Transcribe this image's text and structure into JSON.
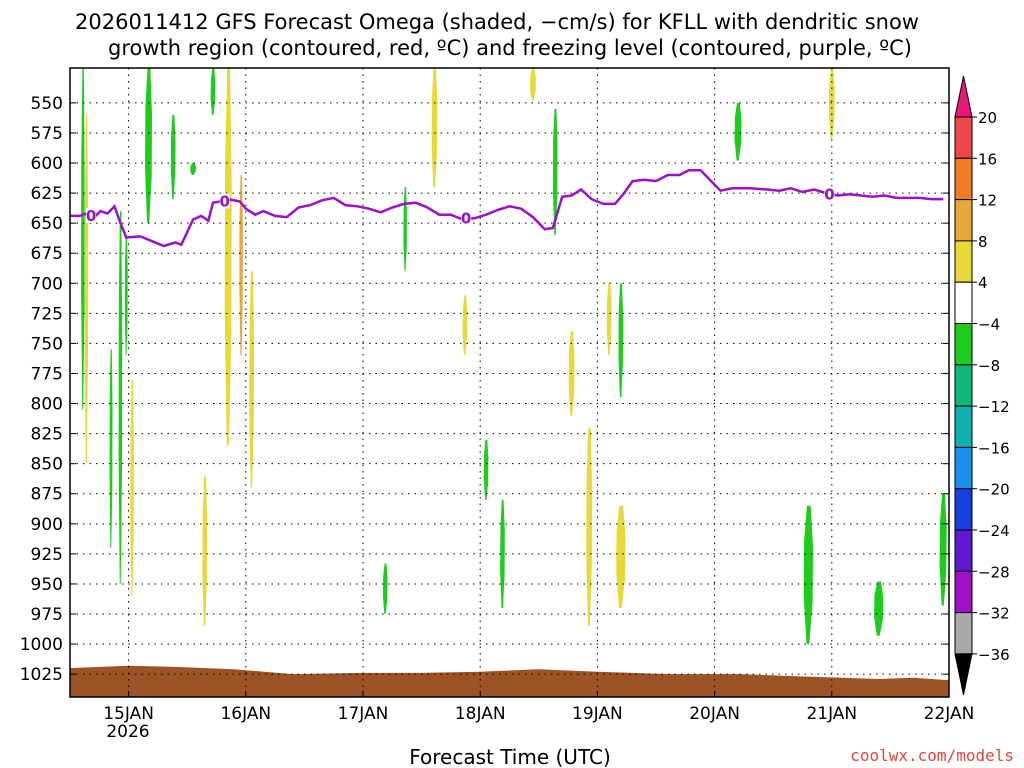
{
  "chart_data": {
    "type": "time-height",
    "title": "2026011412 GFS Forecast Omega (shaded, −cm/s) for KFLL with dendritic snow growth region (contoured, red, ºC) and freezing level (contoured, purple, ºC)",
    "title_lines": [
      "2026011412 GFS Forecast Omega (shaded, −cm/s) for KFLL with dendritic snow",
      "growth region (contoured, red, ºC) and freezing level (contoured, purple, ºC)"
    ],
    "xlabel": "Forecast Time (UTC)",
    "credit": "coolwx.com/models",
    "x_ticks": [
      "15JAN",
      "16JAN",
      "17JAN",
      "18JAN",
      "19JAN",
      "20JAN",
      "21JAN",
      "22JAN"
    ],
    "x_tick_sublabel": "2026",
    "x_range_days": [
      14.5,
      22.0
    ],
    "y_levels_hpa": [
      550,
      575,
      600,
      625,
      650,
      675,
      700,
      725,
      750,
      775,
      800,
      825,
      850,
      875,
      900,
      925,
      950,
      975,
      1000,
      1025
    ],
    "y_range_hpa": [
      521,
      1044
    ],
    "colorbar": {
      "labels": [
        "20",
        "16",
        "12",
        "8",
        "4",
        "−4",
        "−8",
        "−12",
        "−16",
        "−20",
        "−24",
        "−28",
        "−32",
        "−36"
      ],
      "colors": [
        "#e8177a",
        "#f04848",
        "#f07c28",
        "#e8a838",
        "#e8d838",
        "#ffffff",
        "#1ecc1e",
        "#10b878",
        "#10b0b0",
        "#1890f0",
        "#1840e0",
        "#6018d0",
        "#a010c8",
        "#a8a8a8",
        "#000000"
      ]
    },
    "freezing_level_label": "0",
    "freezing_level": [
      [
        14.5,
        644
      ],
      [
        14.58,
        644
      ],
      [
        14.64,
        642
      ],
      [
        14.7,
        646
      ],
      [
        14.76,
        640
      ],
      [
        14.82,
        642
      ],
      [
        14.88,
        636
      ],
      [
        14.93,
        650
      ],
      [
        14.98,
        662
      ],
      [
        15.1,
        661
      ],
      [
        15.2,
        665
      ],
      [
        15.3,
        669
      ],
      [
        15.4,
        666
      ],
      [
        15.45,
        668
      ],
      [
        15.55,
        647
      ],
      [
        15.62,
        644
      ],
      [
        15.68,
        648
      ],
      [
        15.72,
        633
      ],
      [
        15.78,
        632
      ],
      [
        15.85,
        630
      ],
      [
        15.95,
        632
      ],
      [
        16.0,
        638
      ],
      [
        16.08,
        643
      ],
      [
        16.15,
        640
      ],
      [
        16.25,
        644
      ],
      [
        16.35,
        645
      ],
      [
        16.45,
        637
      ],
      [
        16.55,
        635
      ],
      [
        16.65,
        631
      ],
      [
        16.75,
        629
      ],
      [
        16.85,
        635
      ],
      [
        16.95,
        636
      ],
      [
        17.05,
        638
      ],
      [
        17.15,
        641
      ],
      [
        17.25,
        637
      ],
      [
        17.35,
        634
      ],
      [
        17.45,
        633
      ],
      [
        17.55,
        637
      ],
      [
        17.65,
        643
      ],
      [
        17.75,
        643
      ],
      [
        17.85,
        647
      ],
      [
        17.95,
        646
      ],
      [
        18.05,
        643
      ],
      [
        18.15,
        639
      ],
      [
        18.25,
        636
      ],
      [
        18.35,
        638
      ],
      [
        18.45,
        645
      ],
      [
        18.55,
        655
      ],
      [
        18.62,
        654
      ],
      [
        18.7,
        628
      ],
      [
        18.78,
        627
      ],
      [
        18.86,
        622
      ],
      [
        18.95,
        630
      ],
      [
        19.05,
        634
      ],
      [
        19.15,
        634
      ],
      [
        19.22,
        626
      ],
      [
        19.3,
        615
      ],
      [
        19.4,
        614
      ],
      [
        19.5,
        615
      ],
      [
        19.6,
        610
      ],
      [
        19.7,
        610
      ],
      [
        19.78,
        606
      ],
      [
        19.88,
        606
      ],
      [
        19.95,
        613
      ],
      [
        20.05,
        623
      ],
      [
        20.15,
        621
      ],
      [
        20.3,
        621
      ],
      [
        20.45,
        622
      ],
      [
        20.55,
        623
      ],
      [
        20.65,
        621
      ],
      [
        20.75,
        624
      ],
      [
        20.85,
        622
      ],
      [
        20.95,
        625
      ],
      [
        21.05,
        627
      ],
      [
        21.15,
        626
      ],
      [
        21.25,
        627
      ],
      [
        21.35,
        628
      ],
      [
        21.45,
        627
      ],
      [
        21.55,
        629
      ],
      [
        21.65,
        629
      ],
      [
        21.75,
        629
      ],
      [
        21.85,
        630
      ],
      [
        21.95,
        630
      ]
    ],
    "omega_areas": [
      {
        "band": "green",
        "day": 14.61,
        "top": 521,
        "bottom": 805,
        "width": 0.03
      },
      {
        "band": "green",
        "day": 14.85,
        "top": 755,
        "bottom": 920,
        "width": 0.025
      },
      {
        "band": "green",
        "day": 14.93,
        "top": 640,
        "bottom": 950,
        "width": 0.03
      },
      {
        "band": "green",
        "day": 14.98,
        "top": 660,
        "bottom": 760,
        "width": 0.025
      },
      {
        "band": "green",
        "day": 15.17,
        "top": 521,
        "bottom": 650,
        "width": 0.06
      },
      {
        "band": "green",
        "day": 15.38,
        "top": 560,
        "bottom": 630,
        "width": 0.04
      },
      {
        "band": "green",
        "day": 15.55,
        "top": 600,
        "bottom": 610,
        "width": 0.05
      },
      {
        "band": "green",
        "day": 15.72,
        "top": 521,
        "bottom": 560,
        "width": 0.04
      },
      {
        "band": "green",
        "day": 17.19,
        "top": 933,
        "bottom": 975,
        "width": 0.04
      },
      {
        "band": "green",
        "day": 17.36,
        "top": 620,
        "bottom": 690,
        "width": 0.03
      },
      {
        "band": "green",
        "day": 18.05,
        "top": 830,
        "bottom": 880,
        "width": 0.04
      },
      {
        "band": "green",
        "day": 18.19,
        "top": 880,
        "bottom": 970,
        "width": 0.04
      },
      {
        "band": "green",
        "day": 18.64,
        "top": 555,
        "bottom": 660,
        "width": 0.04
      },
      {
        "band": "green",
        "day": 19.2,
        "top": 700,
        "bottom": 795,
        "width": 0.04
      },
      {
        "band": "green",
        "day": 20.2,
        "top": 550,
        "bottom": 598,
        "width": 0.06
      },
      {
        "band": "green",
        "day": 20.8,
        "top": 885,
        "bottom": 1000,
        "width": 0.08
      },
      {
        "band": "green",
        "day": 21.4,
        "top": 948,
        "bottom": 993,
        "width": 0.08
      },
      {
        "band": "green",
        "day": 21.95,
        "top": 875,
        "bottom": 968,
        "width": 0.06
      },
      {
        "band": "yellow",
        "day": 14.64,
        "top": 560,
        "bottom": 850,
        "width": 0.03
      },
      {
        "band": "yellow",
        "day": 15.03,
        "top": 780,
        "bottom": 960,
        "width": 0.03
      },
      {
        "band": "yellow",
        "day": 15.65,
        "top": 860,
        "bottom": 985,
        "width": 0.04
      },
      {
        "band": "yellow",
        "day": 15.85,
        "top": 521,
        "bottom": 835,
        "width": 0.06
      },
      {
        "band": "yellow",
        "day": 16.05,
        "top": 690,
        "bottom": 870,
        "width": 0.04
      },
      {
        "band": "yellow",
        "day": 17.61,
        "top": 521,
        "bottom": 620,
        "width": 0.05
      },
      {
        "band": "yellow",
        "day": 17.87,
        "top": 710,
        "bottom": 760,
        "width": 0.04
      },
      {
        "band": "yellow",
        "day": 18.45,
        "top": 521,
        "bottom": 548,
        "width": 0.05
      },
      {
        "band": "yellow",
        "day": 18.78,
        "top": 740,
        "bottom": 810,
        "width": 0.05
      },
      {
        "band": "yellow",
        "day": 18.93,
        "top": 820,
        "bottom": 985,
        "width": 0.05
      },
      {
        "band": "yellow",
        "day": 19.1,
        "top": 700,
        "bottom": 760,
        "width": 0.04
      },
      {
        "band": "yellow",
        "day": 19.2,
        "top": 885,
        "bottom": 970,
        "width": 0.08
      },
      {
        "band": "yellow",
        "day": 21.0,
        "top": 521,
        "bottom": 580,
        "width": 0.05
      },
      {
        "band": "orange",
        "day": 15.96,
        "top": 610,
        "bottom": 760,
        "width": 0.03
      }
    ]
  }
}
